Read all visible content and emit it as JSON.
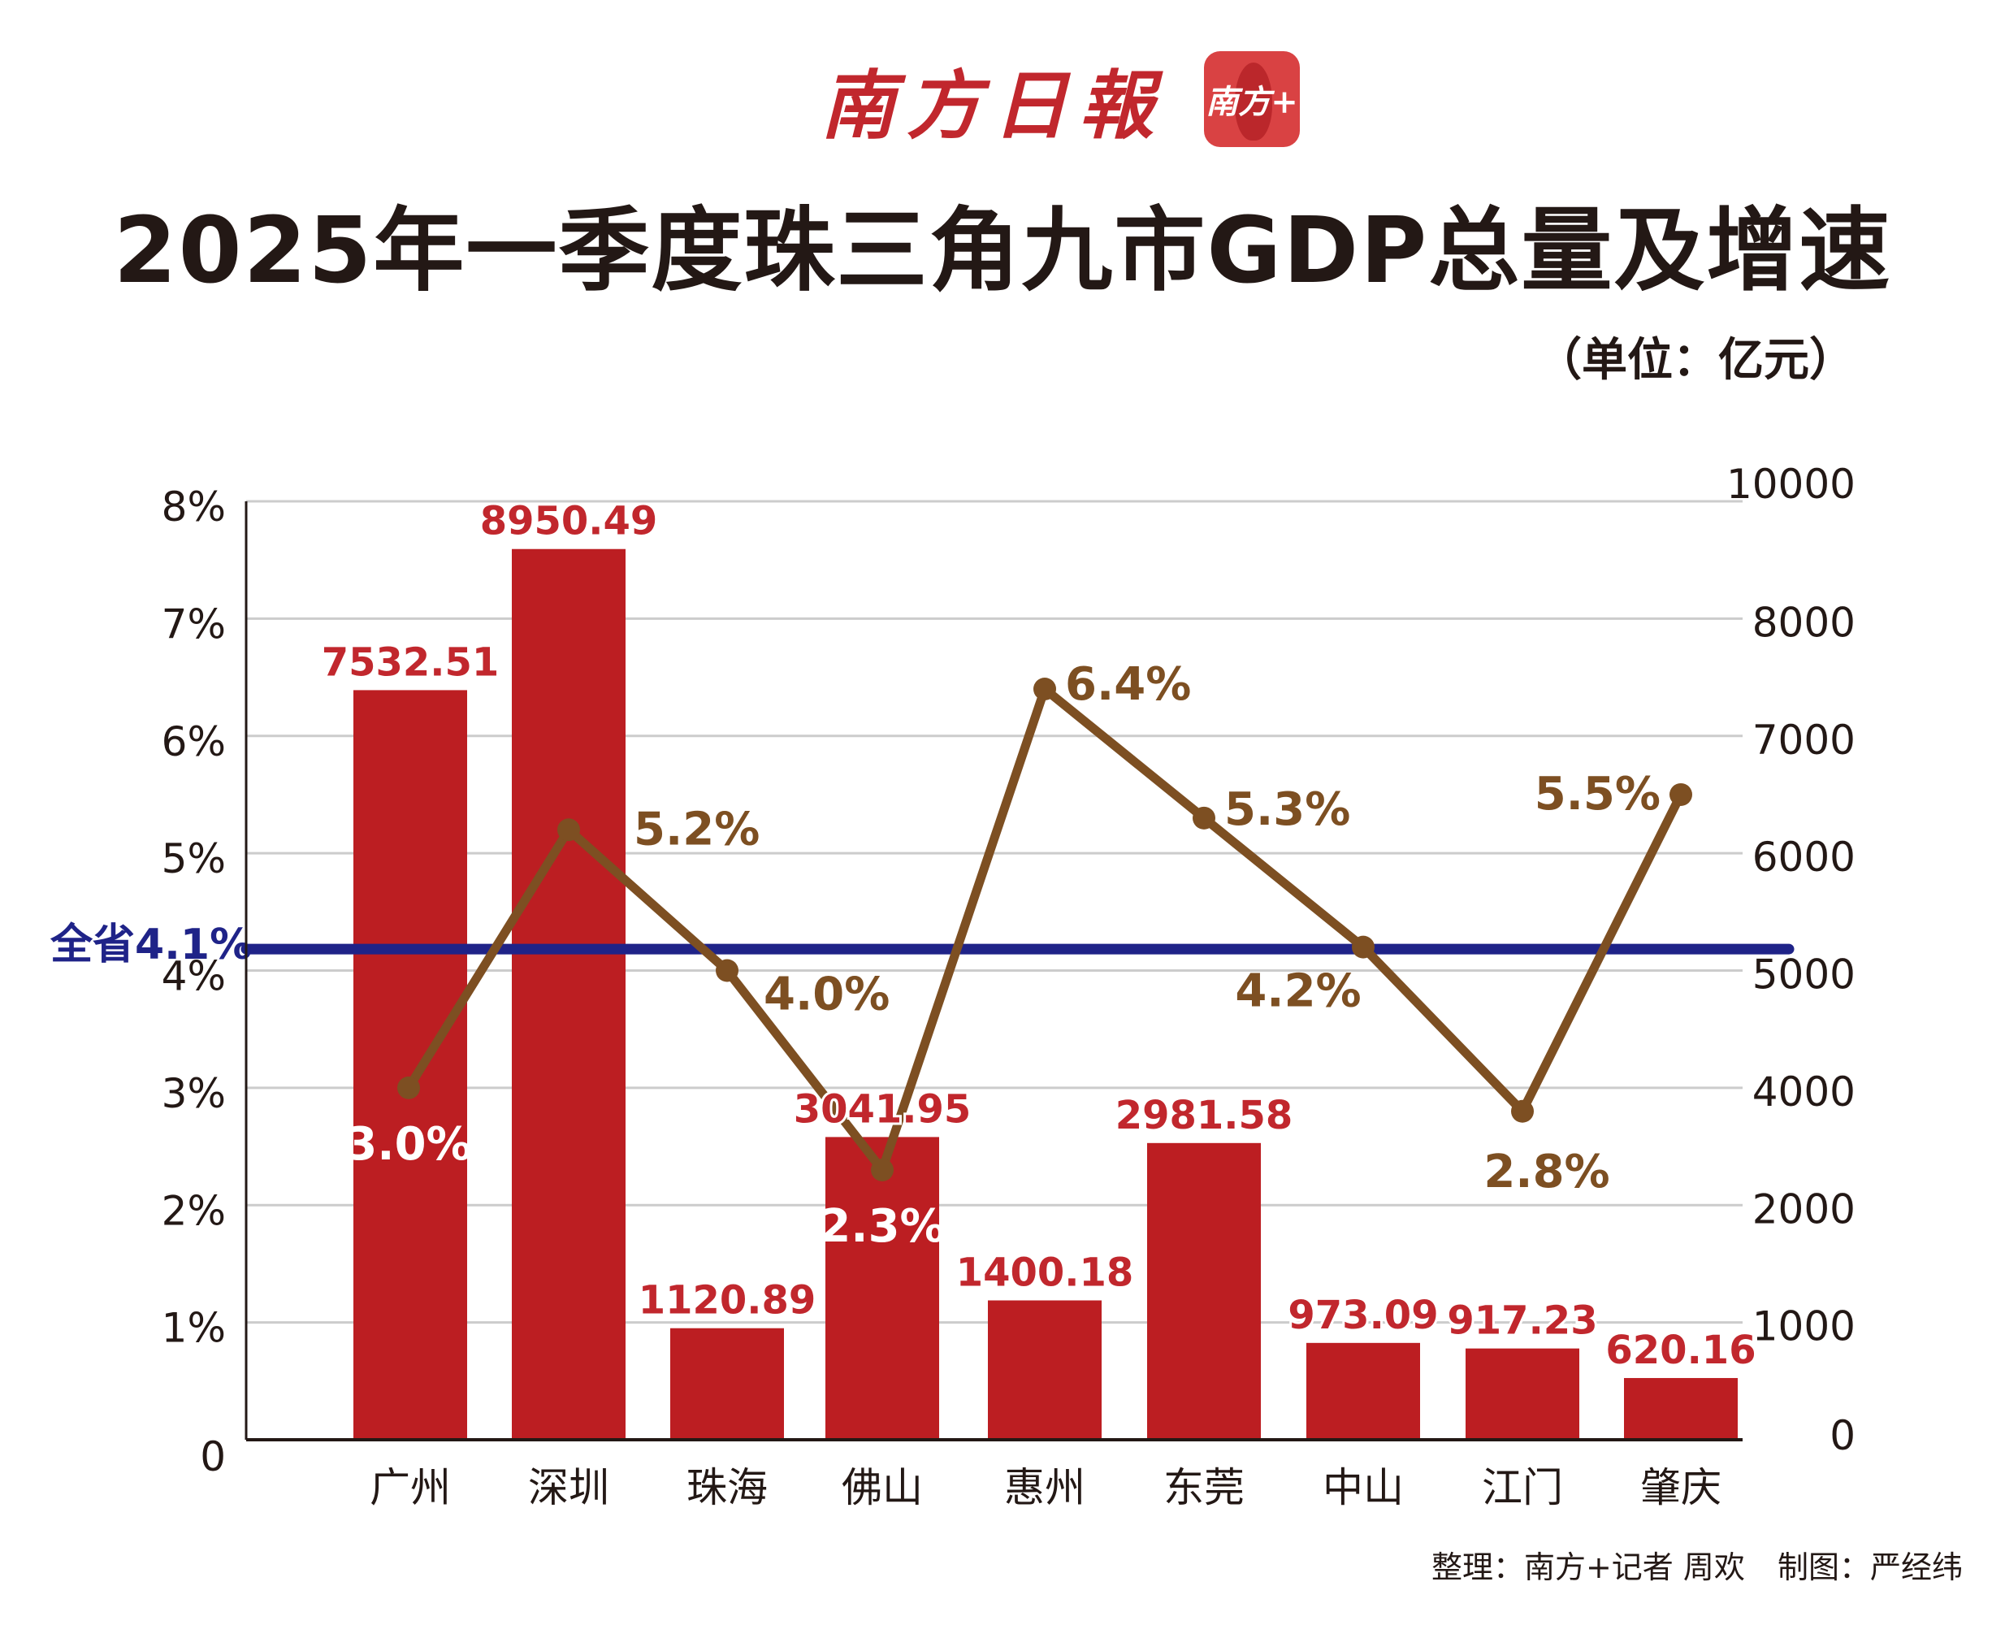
{
  "header": {
    "logo_text": "南方日報",
    "badge_text": "南方+",
    "title": "2025年一季度珠三角九市GDP总量及增速",
    "unit": "（单位：亿元）"
  },
  "colors": {
    "bar": "#bc1e22",
    "line": "#7d4f22",
    "province_line": "#1f2388",
    "grid": "#cccccc",
    "axis": "#231815",
    "bar_label": "#c1272d"
  },
  "chart_data": {
    "type": "bar",
    "title": "2025年一季度珠三角九市GDP总量及增速",
    "categories": [
      "广州",
      "深圳",
      "珠海",
      "佛山",
      "惠州",
      "东莞",
      "中山",
      "江门",
      "肇庆"
    ],
    "series": [
      {
        "name": "GDP总量（亿元）",
        "type": "bar",
        "axis": "right",
        "values": [
          7532.51,
          8950.49,
          1120.89,
          3041.95,
          1400.18,
          2981.58,
          973.09,
          917.23,
          620.16
        ],
        "labels": [
          "7532.51",
          "8950.49",
          "1120.89",
          "3041.95",
          "1400.18",
          "2981.58",
          "973.09",
          "917.23",
          "620.16"
        ]
      },
      {
        "name": "增速",
        "type": "line",
        "axis": "left",
        "values": [
          3.0,
          5.2,
          4.0,
          2.3,
          6.4,
          5.3,
          4.2,
          2.8,
          5.5
        ],
        "labels": [
          "3.0%",
          "5.2%",
          "4.0%",
          "2.3%",
          "6.4%",
          "5.3%",
          "4.2%",
          "2.8%",
          "5.5%"
        ]
      }
    ],
    "reference_line": {
      "label": "全省4.1%",
      "value": 4.1
    },
    "left_axis": {
      "ylim": [
        0,
        8
      ],
      "ticks": [
        0,
        1,
        2,
        3,
        4,
        5,
        6,
        7,
        8
      ],
      "tick_labels": [
        "0",
        "1%",
        "2%",
        "3%",
        "4%",
        "5%",
        "6%",
        "7%",
        "8%"
      ]
    },
    "right_axis": {
      "tick_labels": [
        "0",
        "1000",
        "2000",
        "4000",
        "5000",
        "6000",
        "7000",
        "8000",
        "10000"
      ],
      "bar_scale_max": 9430
    },
    "xlabel": "",
    "ylabel": "",
    "grid": true,
    "legend": "none"
  },
  "footer": {
    "compiled_by": "整理：南方+记者 周欢",
    "designed_by": "制图：严经纬"
  }
}
